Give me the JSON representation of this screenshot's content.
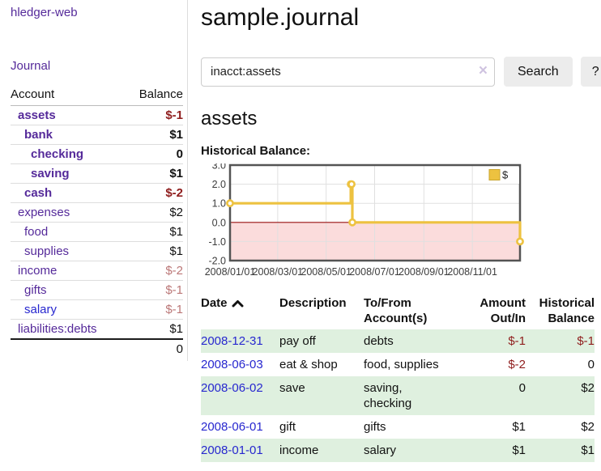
{
  "colors": {
    "purple_link": "#552a9a",
    "blue_link": "#2727cf",
    "negative_strong": "#8f1d1d",
    "negative_soft": "#bb7777",
    "row_stripe_green": "#dff0df",
    "chart_gold": "#edc240",
    "chart_gold_border": "#c9a52f",
    "chart_negative_fill": "#fbdcdc",
    "chart_zero_line": "#991111",
    "chart_grid": "#e0e0e0",
    "chart_border": "#545454"
  },
  "sidebar": {
    "brand": "hledger-web",
    "journal_link": "Journal",
    "accounts_table": {
      "account_header": "Account",
      "balance_header": "Balance",
      "rows": [
        {
          "account": "assets",
          "balance": "$-1",
          "level": 1,
          "bold": true,
          "link": "purple"
        },
        {
          "account": "bank",
          "balance": "$1",
          "level": 2,
          "bold": true,
          "link": "purple"
        },
        {
          "account": "checking",
          "balance": "0",
          "level": 3,
          "bold": true,
          "link": "purple"
        },
        {
          "account": "saving",
          "balance": "$1",
          "level": 3,
          "bold": true,
          "link": "purple"
        },
        {
          "account": "cash",
          "balance": "$-2",
          "level": 2,
          "bold": true,
          "link": "purple"
        },
        {
          "account": "expenses",
          "balance": "$2",
          "level": 1,
          "bold": false,
          "link": "purple"
        },
        {
          "account": "food",
          "balance": "$1",
          "level": 2,
          "bold": false,
          "link": "purple"
        },
        {
          "account": "supplies",
          "balance": "$1",
          "level": 2,
          "bold": false,
          "link": "purple"
        },
        {
          "account": "income",
          "balance": "$-2",
          "level": 1,
          "bold": false,
          "link": "purple"
        },
        {
          "account": "gifts",
          "balance": "$-1",
          "level": 2,
          "bold": false,
          "link": "purple"
        },
        {
          "account": "salary",
          "balance": "$-1",
          "level": 2,
          "bold": false,
          "link": "blue"
        },
        {
          "account": "liabilities:debts",
          "balance": "$1",
          "level": 1,
          "bold": false,
          "link": "purple"
        }
      ],
      "total": "0"
    }
  },
  "header": {
    "title": "sample.journal"
  },
  "search": {
    "value": "inacct:assets",
    "clear_icon": "×",
    "button_label": "Search",
    "help_label": "?"
  },
  "account_page": {
    "heading": "assets",
    "chart_label": "Historical Balance:"
  },
  "chart_data": {
    "type": "line",
    "step": true,
    "series": [
      {
        "name": "$",
        "points": [
          [
            "2008-01-01",
            1
          ],
          [
            "2008-06-01",
            2
          ],
          [
            "2008-06-02",
            2
          ],
          [
            "2008-06-03",
            0
          ],
          [
            "2008-12-31",
            -1
          ]
        ]
      }
    ],
    "title": "Historical Balance:",
    "xlabel": "",
    "ylabel": "",
    "xlim": [
      "2008-01-01",
      "2008-12-31"
    ],
    "ylim": [
      -2.0,
      3.0
    ],
    "y_ticks": [
      3.0,
      2.0,
      1.0,
      0.0,
      -1.0,
      -2.0
    ],
    "x_ticks": [
      "2008/01/01",
      "2008/03/01",
      "2008/05/01",
      "2008/07/01",
      "2008/09/01",
      "2008/11/01"
    ],
    "grid": true,
    "negative_region_shaded": true,
    "legend": {
      "position": "top-right",
      "label": "$"
    }
  },
  "register": {
    "columns": [
      {
        "label": "Date",
        "sorted": "ascending",
        "align": "left"
      },
      {
        "label": "Description",
        "align": "left"
      },
      {
        "label": "To/From\nAccount(s)",
        "align": "left"
      },
      {
        "label": "Amount\nOut/In",
        "align": "right"
      },
      {
        "label": "Historical\nBalance",
        "align": "right"
      }
    ],
    "rows": [
      {
        "date": "2008-12-31",
        "description": "pay off",
        "accounts": "debts",
        "amount": "$-1",
        "balance": "$-1"
      },
      {
        "date": "2008-06-03",
        "description": "eat & shop",
        "accounts": "food, supplies",
        "amount": "$-2",
        "balance": "0"
      },
      {
        "date": "2008-06-02",
        "description": "save",
        "accounts": "saving, checking",
        "amount": "0",
        "balance": "$2"
      },
      {
        "date": "2008-06-01",
        "description": "gift",
        "accounts": "gifts",
        "amount": "$1",
        "balance": "$2"
      },
      {
        "date": "2008-01-01",
        "description": "income",
        "accounts": "salary",
        "amount": "$1",
        "balance": "$1"
      }
    ]
  }
}
